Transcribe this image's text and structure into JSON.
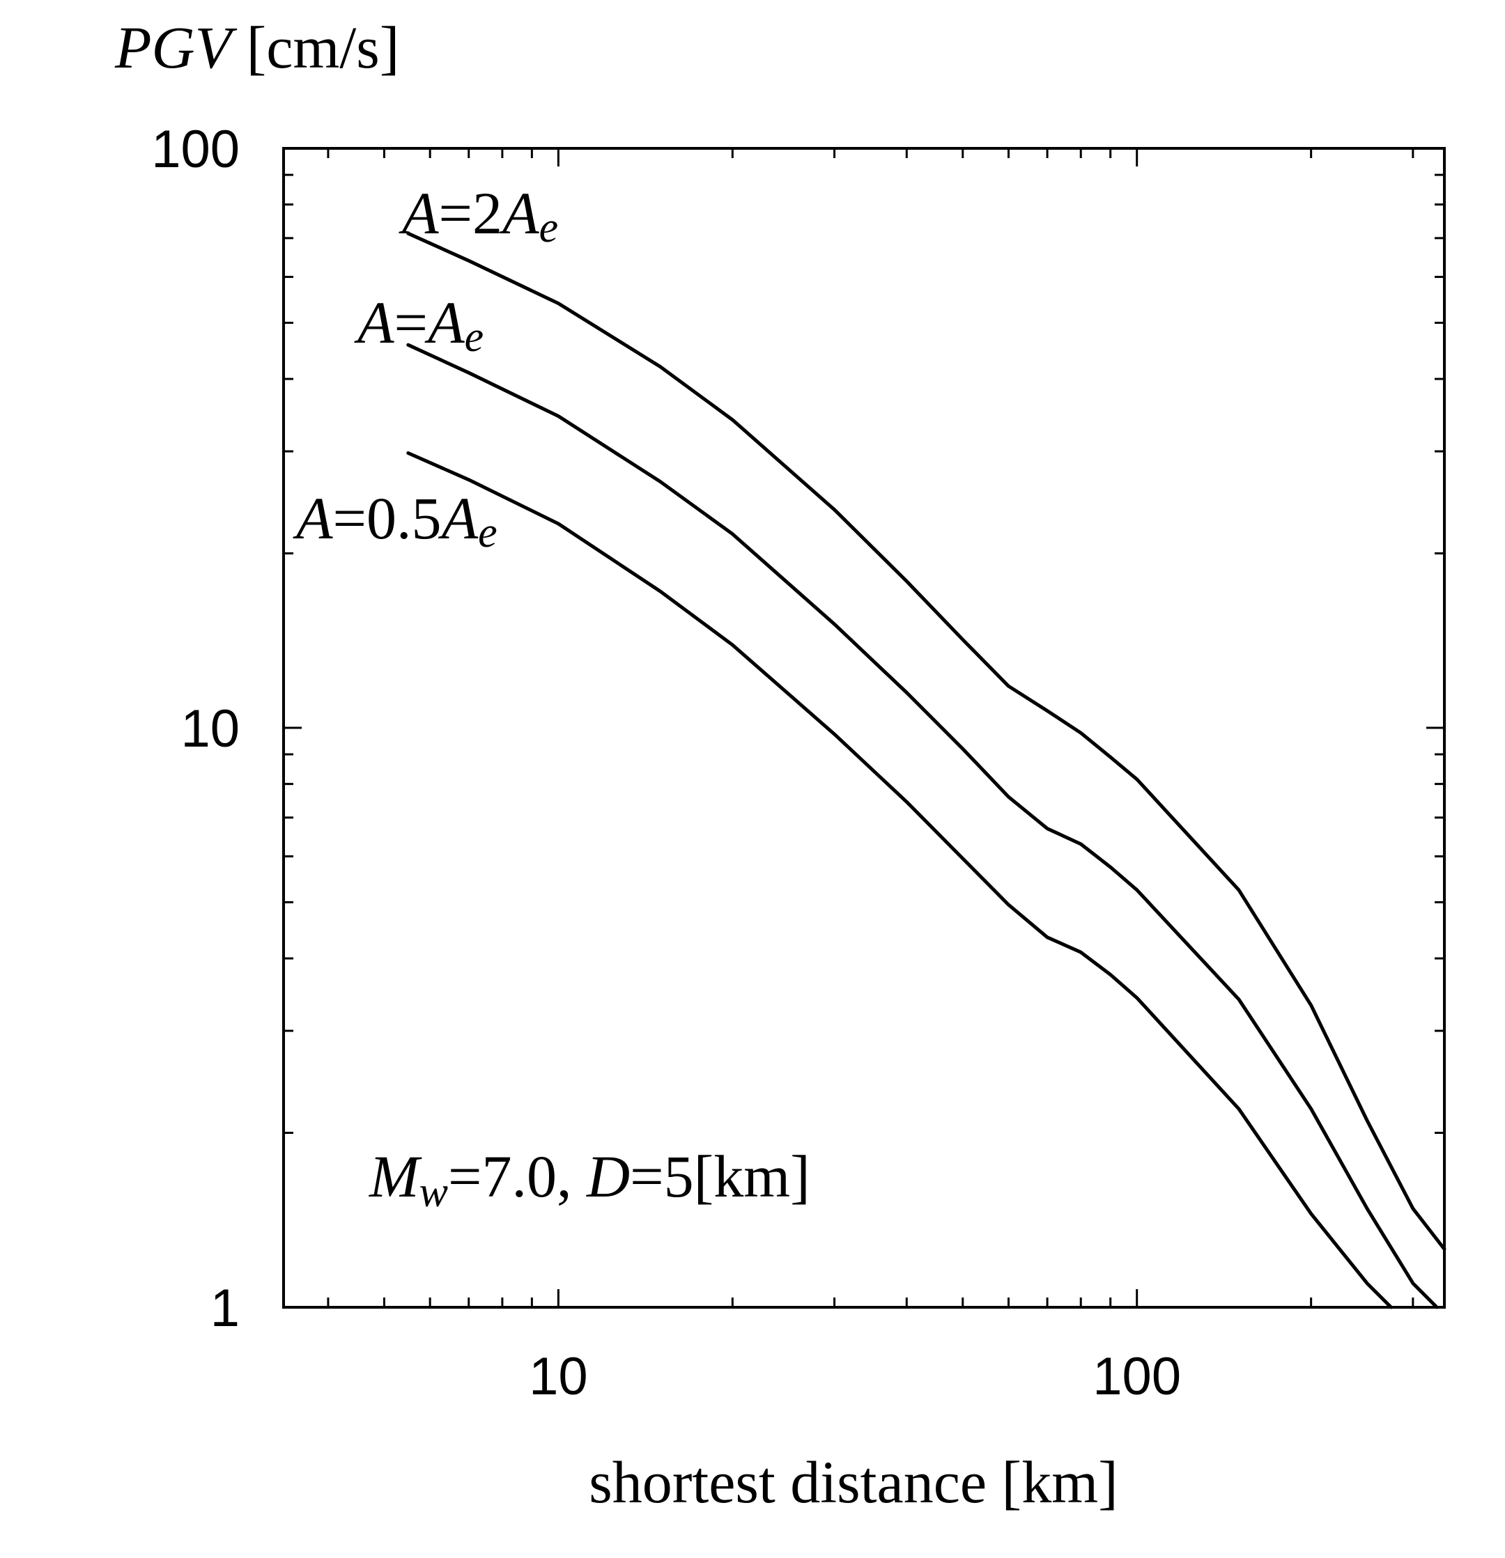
{
  "chart_data": {
    "type": "line",
    "x_scale": "log",
    "y_scale": "log",
    "xlim": [
      3.35,
      340
    ],
    "ylim": [
      1,
      100
    ],
    "xlabel": "shortest distance [km]",
    "ylabel": {
      "italic": "PGV",
      "unit": " [cm/s]"
    },
    "x_ticks": [
      10,
      100
    ],
    "x_tick_labels": [
      "10",
      "100"
    ],
    "y_ticks": [
      1,
      10,
      100
    ],
    "y_tick_labels": [
      "1",
      "10",
      "100"
    ],
    "grid": false,
    "annotation": "Mw=7.0, D=5[km]",
    "annotation_parts": [
      "M",
      "w",
      "=7.0, ",
      "D",
      "=5[km]"
    ],
    "series": [
      {
        "name": "A=2Ae",
        "label_parts": [
          "A",
          "=2",
          "A",
          "e"
        ],
        "x": [
          5.5,
          7,
          10,
          15,
          20,
          30,
          40,
          50,
          60,
          70,
          80,
          90,
          100,
          150,
          200,
          250,
          300,
          340
        ],
        "y": [
          71.3,
          64,
          54,
          42,
          34,
          23.8,
          17.9,
          14.2,
          11.8,
          10.7,
          9.8,
          8.9,
          8.15,
          5.25,
          3.32,
          2.1,
          1.48,
          1.26
        ]
      },
      {
        "name": "A=Ae",
        "label_parts": [
          "A",
          "=",
          "A",
          "e"
        ],
        "x": [
          5.5,
          7,
          10,
          15,
          20,
          30,
          40,
          50,
          60,
          70,
          80,
          90,
          100,
          150,
          200,
          250,
          300,
          330
        ],
        "y": [
          45.8,
          41,
          34.5,
          26.6,
          21.6,
          15.1,
          11.5,
          9.2,
          7.6,
          6.7,
          6.3,
          5.75,
          5.25,
          3.4,
          2.2,
          1.48,
          1.1,
          1.0
        ]
      },
      {
        "name": "A=0.5Ae",
        "label_parts": [
          "A",
          "=0.5",
          "A",
          "e"
        ],
        "x": [
          5.5,
          7,
          10,
          15,
          20,
          30,
          40,
          50,
          60,
          70,
          80,
          90,
          100,
          150,
          200,
          250,
          275
        ],
        "y": [
          29.8,
          26.8,
          22.5,
          17.2,
          13.9,
          9.75,
          7.45,
          5.95,
          4.95,
          4.35,
          4.1,
          3.75,
          3.42,
          2.2,
          1.45,
          1.1,
          1.0
        ]
      }
    ]
  }
}
